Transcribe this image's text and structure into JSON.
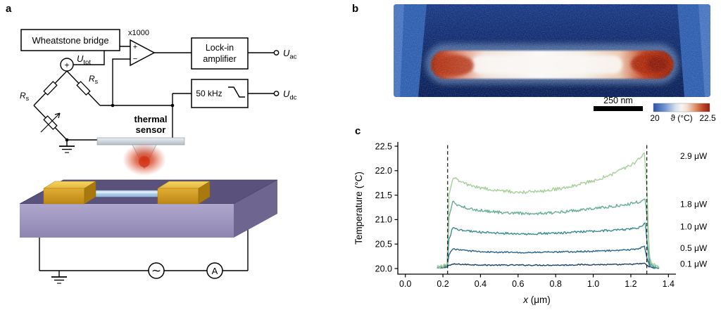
{
  "figure": {
    "labels": {
      "a": "a",
      "b": "b",
      "c": "c"
    }
  },
  "panel_a": {
    "wheatstone_label": "Wheatstone bridge",
    "u_tot": {
      "base": "U",
      "sub": "tot"
    },
    "r_s_right": {
      "base": "R",
      "sub": "s"
    },
    "r_s_left": {
      "base": "R",
      "sub": "s"
    },
    "source_plus": "+",
    "opamp_plus": "+",
    "opamp_minus": "−",
    "gain_label": "x1000",
    "lockin_line1": "Lock-in",
    "lockin_line2": "amplifier",
    "filter_label": "50 kHz",
    "u_ac": {
      "base": "U",
      "sub": "ac"
    },
    "u_dc": {
      "base": "U",
      "sub": "dc"
    },
    "sensor_line1": "thermal",
    "sensor_line2": "sensor",
    "ac_source_symbol": "∼",
    "ammeter_label": "A"
  },
  "panel_b": {
    "scale_bar_label": "250 nm",
    "colorbar": {
      "min_label": "20",
      "title": "ϑ (°C)",
      "max_label": "22.5",
      "gradient": [
        "#2b52a8",
        "#6f94cf",
        "#d8e2ee",
        "#f7f4f0",
        "#f2ddd0",
        "#dd8e66",
        "#c04424",
        "#8e2212"
      ]
    }
  },
  "chart_data": {
    "type": "line",
    "title": "",
    "xlabel": "x (μm)",
    "xlabel_parts": {
      "var": "x",
      "rest": " (μm)"
    },
    "ylabel": "Temperature (°C)",
    "xlim": [
      0.0,
      1.4
    ],
    "ylim": [
      20.0,
      22.5
    ],
    "grid": false,
    "legend_position": "right-outside",
    "xticks": [
      0.0,
      0.2,
      0.4,
      0.6,
      0.8,
      1.0,
      1.2,
      1.4
    ],
    "xtick_labels": [
      "0.0",
      "0.2",
      "0.4",
      "0.6",
      "0.8",
      "1.0",
      "1.2",
      "1.4"
    ],
    "yticks": [
      20.0,
      20.5,
      21.0,
      21.5,
      22.0,
      22.5
    ],
    "ytick_labels": [
      "20.0",
      "20.5",
      "21.0",
      "21.5",
      "22.0",
      "22.5"
    ],
    "dashed_lines_x": [
      0.225,
      1.285
    ],
    "series": [
      {
        "name": "0.1 μW",
        "color": "#1c3e64",
        "label_y": 20.1,
        "points": [
          [
            0.17,
            20.01
          ],
          [
            0.2,
            20.02
          ],
          [
            0.228,
            20.06
          ],
          [
            0.26,
            20.09
          ],
          [
            0.34,
            20.08
          ],
          [
            0.44,
            20.07
          ],
          [
            0.54,
            20.07
          ],
          [
            0.64,
            20.07
          ],
          [
            0.74,
            20.07
          ],
          [
            0.84,
            20.07
          ],
          [
            0.94,
            20.08
          ],
          [
            1.04,
            20.08
          ],
          [
            1.14,
            20.08
          ],
          [
            1.22,
            20.09
          ],
          [
            1.26,
            20.1
          ],
          [
            1.278,
            20.1
          ],
          [
            1.292,
            20.04
          ],
          [
            1.32,
            20.02
          ],
          [
            1.35,
            20.01
          ]
        ]
      },
      {
        "name": "0.5 μW",
        "color": "#28648c",
        "label_y": 20.42,
        "points": [
          [
            0.17,
            20.01
          ],
          [
            0.2,
            20.02
          ],
          [
            0.222,
            20.04
          ],
          [
            0.232,
            20.28
          ],
          [
            0.25,
            20.4
          ],
          [
            0.3,
            20.37
          ],
          [
            0.38,
            20.35
          ],
          [
            0.46,
            20.34
          ],
          [
            0.56,
            20.33
          ],
          [
            0.66,
            20.33
          ],
          [
            0.76,
            20.34
          ],
          [
            0.86,
            20.34
          ],
          [
            0.96,
            20.35
          ],
          [
            1.06,
            20.36
          ],
          [
            1.16,
            20.38
          ],
          [
            1.24,
            20.4
          ],
          [
            1.272,
            20.45
          ],
          [
            1.285,
            20.22
          ],
          [
            1.3,
            20.05
          ],
          [
            1.32,
            20.02
          ],
          [
            1.35,
            20.01
          ]
        ]
      },
      {
        "name": "1.0 μW",
        "color": "#3b8a90",
        "label_y": 20.86,
        "points": [
          [
            0.17,
            20.02
          ],
          [
            0.2,
            20.03
          ],
          [
            0.222,
            20.05
          ],
          [
            0.232,
            20.6
          ],
          [
            0.252,
            20.83
          ],
          [
            0.3,
            20.78
          ],
          [
            0.37,
            20.75
          ],
          [
            0.45,
            20.73
          ],
          [
            0.53,
            20.72
          ],
          [
            0.61,
            20.71
          ],
          [
            0.69,
            20.71
          ],
          [
            0.77,
            20.72
          ],
          [
            0.85,
            20.73
          ],
          [
            0.93,
            20.75
          ],
          [
            1.01,
            20.76
          ],
          [
            1.09,
            20.78
          ],
          [
            1.17,
            20.8
          ],
          [
            1.23,
            20.82
          ],
          [
            1.262,
            20.86
          ],
          [
            1.276,
            20.94
          ],
          [
            1.288,
            20.5
          ],
          [
            1.3,
            20.08
          ],
          [
            1.33,
            20.02
          ],
          [
            1.35,
            20.02
          ]
        ]
      },
      {
        "name": "1.8 μW",
        "color": "#68ad92",
        "label_y": 21.32,
        "points": [
          [
            0.17,
            20.02
          ],
          [
            0.2,
            20.04
          ],
          [
            0.222,
            20.06
          ],
          [
            0.232,
            21.05
          ],
          [
            0.252,
            21.36
          ],
          [
            0.29,
            21.28
          ],
          [
            0.35,
            21.22
          ],
          [
            0.42,
            21.18
          ],
          [
            0.5,
            21.15
          ],
          [
            0.58,
            21.13
          ],
          [
            0.66,
            21.12
          ],
          [
            0.74,
            21.13
          ],
          [
            0.82,
            21.15
          ],
          [
            0.9,
            21.18
          ],
          [
            0.98,
            21.21
          ],
          [
            1.06,
            21.25
          ],
          [
            1.14,
            21.29
          ],
          [
            1.21,
            21.33
          ],
          [
            1.26,
            21.38
          ],
          [
            1.276,
            21.42
          ],
          [
            1.289,
            20.95
          ],
          [
            1.302,
            20.12
          ],
          [
            1.33,
            20.03
          ],
          [
            1.35,
            20.02
          ]
        ]
      },
      {
        "name": "2.9 μW",
        "color": "#a6cf9b",
        "label_y": 22.3,
        "points": [
          [
            0.17,
            20.03
          ],
          [
            0.2,
            20.05
          ],
          [
            0.222,
            20.08
          ],
          [
            0.232,
            21.5
          ],
          [
            0.255,
            21.87
          ],
          [
            0.29,
            21.78
          ],
          [
            0.34,
            21.7
          ],
          [
            0.41,
            21.64
          ],
          [
            0.48,
            21.6
          ],
          [
            0.56,
            21.57
          ],
          [
            0.64,
            21.56
          ],
          [
            0.72,
            21.58
          ],
          [
            0.8,
            21.62
          ],
          [
            0.88,
            21.68
          ],
          [
            0.96,
            21.75
          ],
          [
            1.03,
            21.83
          ],
          [
            1.1,
            21.93
          ],
          [
            1.17,
            22.05
          ],
          [
            1.22,
            22.16
          ],
          [
            1.252,
            22.26
          ],
          [
            1.272,
            22.36
          ],
          [
            1.286,
            21.6
          ],
          [
            1.298,
            20.25
          ],
          [
            1.315,
            20.08
          ],
          [
            1.35,
            20.04
          ]
        ]
      }
    ]
  }
}
